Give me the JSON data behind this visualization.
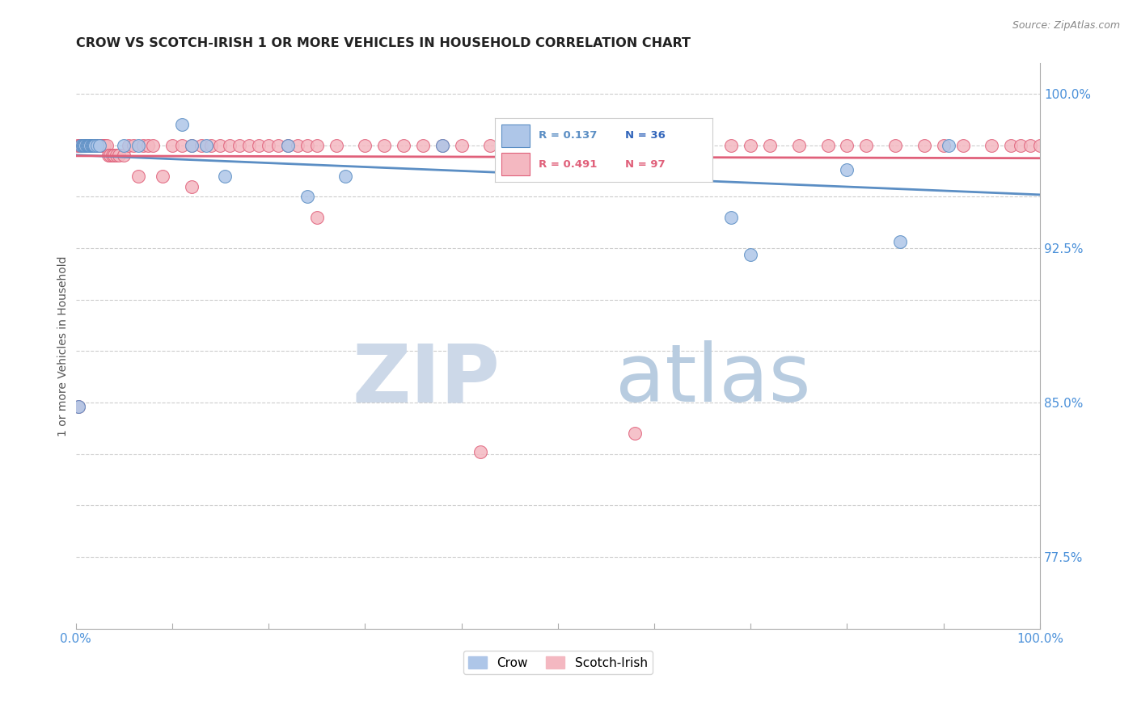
{
  "title": "CROW VS SCOTCH-IRISH 1 OR MORE VEHICLES IN HOUSEHOLD CORRELATION CHART",
  "source": "Source: ZipAtlas.com",
  "ylabel": "1 or more Vehicles in Household",
  "xlim": [
    0,
    1.0
  ],
  "ylim": [
    0.74,
    1.015
  ],
  "xtick_pos": [
    0.0,
    0.1,
    0.2,
    0.3,
    0.4,
    0.5,
    0.6,
    0.7,
    0.8,
    0.9,
    1.0
  ],
  "xticklabels": [
    "0.0%",
    "",
    "",
    "",
    "",
    "",
    "",
    "",
    "",
    "",
    "100.0%"
  ],
  "ytick_positions": [
    0.775,
    0.8,
    0.825,
    0.85,
    0.875,
    0.9,
    0.925,
    0.95,
    0.975,
    1.0
  ],
  "ytick_labels_right": [
    "77.5%",
    "",
    "",
    "85.0%",
    "",
    "",
    "92.5%",
    "",
    "",
    "100.0%"
  ],
  "crow_R": 0.137,
  "crow_N": 36,
  "scotch_R": 0.491,
  "scotch_N": 97,
  "crow_color": "#aec6e8",
  "scotch_color": "#f4b8c1",
  "crow_edge_color": "#5b8ec4",
  "scotch_edge_color": "#e0607a",
  "crow_line_color": "#5b8ec4",
  "scotch_line_color": "#e0607a",
  "tick_label_color": "#4a90d9",
  "background_color": "#ffffff",
  "grid_color": "#cccccc",
  "watermark_zip_color": "#ccd8e8",
  "watermark_atlas_color": "#b8cce0",
  "crow_x": [
    0.003,
    0.005,
    0.007,
    0.008,
    0.009,
    0.01,
    0.011,
    0.012,
    0.013,
    0.014,
    0.015,
    0.016,
    0.017,
    0.018,
    0.019,
    0.02,
    0.022,
    0.025,
    0.05,
    0.065,
    0.11,
    0.12,
    0.135,
    0.155,
    0.22,
    0.24,
    0.28,
    0.38,
    0.48,
    0.55,
    0.62,
    0.68,
    0.7,
    0.8,
    0.855,
    0.905
  ],
  "crow_y": [
    0.848,
    0.975,
    0.975,
    0.975,
    0.975,
    0.975,
    0.975,
    0.975,
    0.975,
    0.975,
    0.975,
    0.975,
    0.975,
    0.975,
    0.975,
    0.975,
    0.975,
    0.975,
    0.975,
    0.975,
    0.985,
    0.975,
    0.975,
    0.96,
    0.975,
    0.95,
    0.96,
    0.975,
    0.975,
    0.975,
    0.975,
    0.94,
    0.922,
    0.963,
    0.928,
    0.975
  ],
  "scotch_x": [
    0.002,
    0.004,
    0.005,
    0.006,
    0.007,
    0.008,
    0.009,
    0.01,
    0.011,
    0.012,
    0.013,
    0.014,
    0.015,
    0.016,
    0.017,
    0.018,
    0.019,
    0.02,
    0.021,
    0.022,
    0.023,
    0.024,
    0.025,
    0.026,
    0.027,
    0.028,
    0.029,
    0.03,
    0.032,
    0.034,
    0.036,
    0.038,
    0.04,
    0.042,
    0.045,
    0.05,
    0.055,
    0.06,
    0.065,
    0.07,
    0.075,
    0.08,
    0.09,
    0.1,
    0.11,
    0.12,
    0.13,
    0.14,
    0.15,
    0.16,
    0.17,
    0.18,
    0.19,
    0.2,
    0.21,
    0.22,
    0.23,
    0.24,
    0.25,
    0.27,
    0.3,
    0.32,
    0.34,
    0.36,
    0.38,
    0.4,
    0.43,
    0.45,
    0.48,
    0.5,
    0.52,
    0.55,
    0.58,
    0.6,
    0.62,
    0.65,
    0.68,
    0.7,
    0.72,
    0.75,
    0.78,
    0.8,
    0.82,
    0.85,
    0.88,
    0.9,
    0.92,
    0.95,
    0.97,
    0.98,
    0.99,
    1.0,
    0.003,
    0.12,
    0.25,
    0.42,
    0.58
  ],
  "scotch_y": [
    0.975,
    0.975,
    0.975,
    0.975,
    0.975,
    0.975,
    0.975,
    0.975,
    0.975,
    0.975,
    0.975,
    0.975,
    0.975,
    0.975,
    0.975,
    0.975,
    0.975,
    0.975,
    0.975,
    0.975,
    0.975,
    0.975,
    0.975,
    0.975,
    0.975,
    0.975,
    0.975,
    0.975,
    0.975,
    0.97,
    0.97,
    0.97,
    0.97,
    0.97,
    0.97,
    0.97,
    0.975,
    0.975,
    0.96,
    0.975,
    0.975,
    0.975,
    0.96,
    0.975,
    0.975,
    0.975,
    0.975,
    0.975,
    0.975,
    0.975,
    0.975,
    0.975,
    0.975,
    0.975,
    0.975,
    0.975,
    0.975,
    0.975,
    0.975,
    0.975,
    0.975,
    0.975,
    0.975,
    0.975,
    0.975,
    0.975,
    0.975,
    0.975,
    0.975,
    0.975,
    0.975,
    0.975,
    0.975,
    0.975,
    0.975,
    0.975,
    0.975,
    0.975,
    0.975,
    0.975,
    0.975,
    0.975,
    0.975,
    0.975,
    0.975,
    0.975,
    0.975,
    0.975,
    0.975,
    0.975,
    0.975,
    0.975,
    0.848,
    0.955,
    0.94,
    0.826,
    0.835
  ]
}
